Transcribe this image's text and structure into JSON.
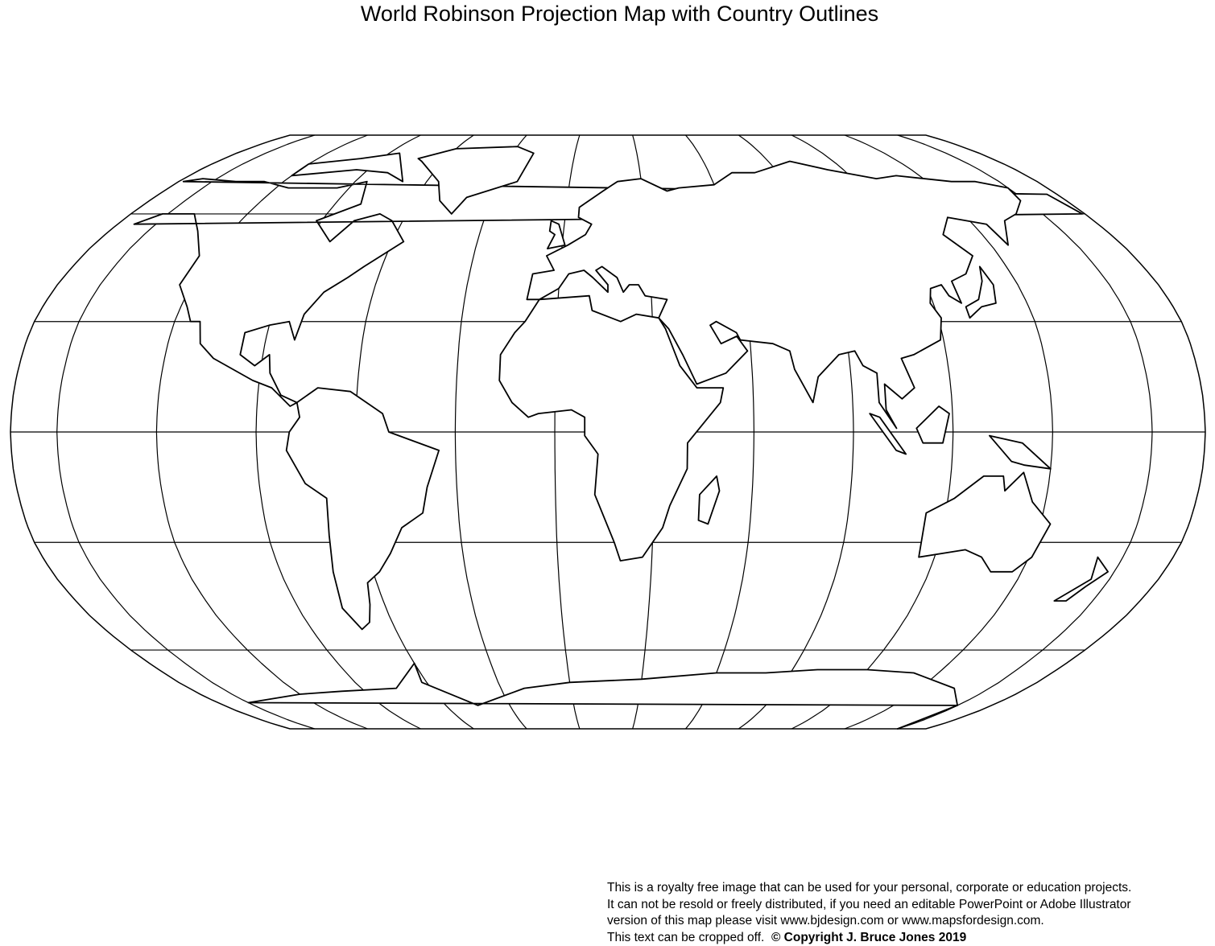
{
  "title": "World Robinson Projection Map with Country Outlines",
  "map": {
    "projection": "Robinson",
    "graticule_interval_degrees": 30,
    "line_color": "#000000",
    "land_fill": "#ffffff"
  },
  "footer": {
    "lines": [
      "This is a royalty free image that can be used for your personal, corporate or education projects.",
      "It can not be resold or freely distributed, if you need an editable PowerPoint or Adobe Illustrator",
      "version of this map please visit www.bjdesign.com or www.mapsfordesign.com.",
      "This text can be cropped off."
    ],
    "copyright": "© Copyright J. Bruce Jones 2019"
  }
}
